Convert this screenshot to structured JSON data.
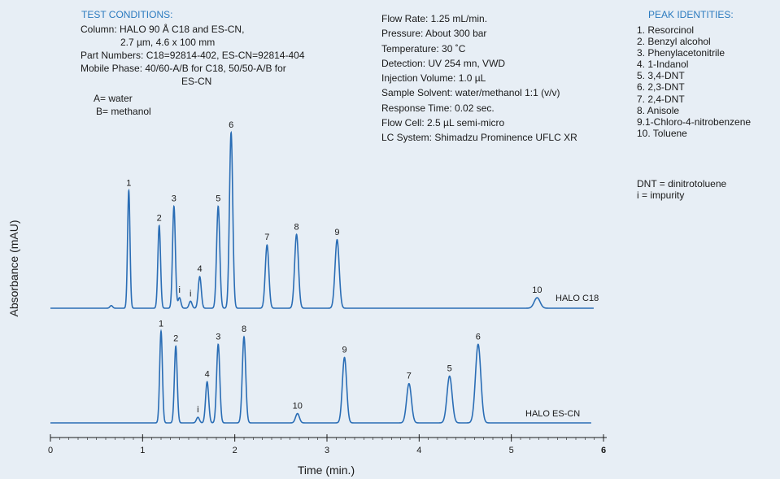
{
  "test_conditions": {
    "title": "TEST CONDITIONS:",
    "lines": [
      "Column: HALO 90 Å C18 and ES-CN,",
      "2.7 µm, 4.6 x 100 mm",
      "Part Numbers: C18=92814-402, ES-CN=92814-404",
      "Mobile Phase: 40/60-A/B for C18, 50/50-A/B for",
      "ES-CN"
    ],
    "solvents": [
      "A= water",
      "B= methanol"
    ]
  },
  "conditions": [
    "Flow Rate: 1.25 mL/min.",
    "Pressure: About 300 bar",
    "Temperature: 30 ˚C",
    "Detection: UV 254 mn, VWD",
    "Injection Volume: 1.0 µL",
    "Sample Solvent: water/methanol 1:1 (v/v)",
    "Response Time: 0.02 sec.",
    "Flow Cell: 2.5 µL semi-micro",
    "LC System: Shimadzu Prominence UFLC XR"
  ],
  "peak_identities": {
    "title": "PEAK IDENTITIES:",
    "items": [
      "1. Resorcinol",
      "2. Benzyl alcohol",
      "3.  Phenylacetonitrile",
      "4. 1-Indanol",
      "5. 3,4-DNT",
      "6. 2,3-DNT",
      "7. 2,4-DNT",
      "8. Anisole",
      "9.1-Chloro-4-nitrobenzene",
      "10. Toluene"
    ],
    "notes": [
      "DNT = dinitrotoluene",
      "i = impurity"
    ]
  },
  "chart_data": {
    "type": "line",
    "xlabel": "Time (min.)",
    "ylabel": "Absorbance (mAU)",
    "xlim": [
      0,
      6
    ],
    "x_ticks": [
      "0",
      "1",
      "2",
      "3",
      "4",
      "5",
      "6"
    ],
    "series": [
      {
        "name": "HALO C18",
        "color": "#2a6db5",
        "peaks": [
          {
            "label": "1",
            "t": 0.85,
            "h": 0.67
          },
          {
            "label": "2",
            "t": 1.18,
            "h": 0.47
          },
          {
            "label": "3",
            "t": 1.34,
            "h": 0.58
          },
          {
            "label": "i",
            "t": 1.4,
            "h": 0.06
          },
          {
            "label": "i",
            "t": 1.52,
            "h": 0.04
          },
          {
            "label": "4",
            "t": 1.62,
            "h": 0.18
          },
          {
            "label": "5",
            "t": 1.82,
            "h": 0.58
          },
          {
            "label": "6",
            "t": 1.96,
            "h": 1.0
          },
          {
            "label": "7",
            "t": 2.35,
            "h": 0.36
          },
          {
            "label": "8",
            "t": 2.67,
            "h": 0.42
          },
          {
            "label": "9",
            "t": 3.11,
            "h": 0.39
          },
          {
            "label": "10",
            "t": 5.28,
            "h": 0.06
          }
        ]
      },
      {
        "name": "HALO ES-CN",
        "color": "#2a6db5",
        "peaks": [
          {
            "label": "1",
            "t": 1.2,
            "h": 0.49
          },
          {
            "label": "2",
            "t": 1.36,
            "h": 0.41
          },
          {
            "label": "i",
            "t": 1.6,
            "h": 0.03
          },
          {
            "label": "4",
            "t": 1.7,
            "h": 0.22
          },
          {
            "label": "3",
            "t": 1.82,
            "h": 0.42
          },
          {
            "label": "8",
            "t": 2.1,
            "h": 0.46
          },
          {
            "label": "10",
            "t": 2.68,
            "h": 0.05
          },
          {
            "label": "9",
            "t": 3.19,
            "h": 0.35
          },
          {
            "label": "7",
            "t": 3.89,
            "h": 0.21
          },
          {
            "label": "5",
            "t": 4.33,
            "h": 0.25
          },
          {
            "label": "6",
            "t": 4.64,
            "h": 0.42
          }
        ]
      }
    ]
  }
}
